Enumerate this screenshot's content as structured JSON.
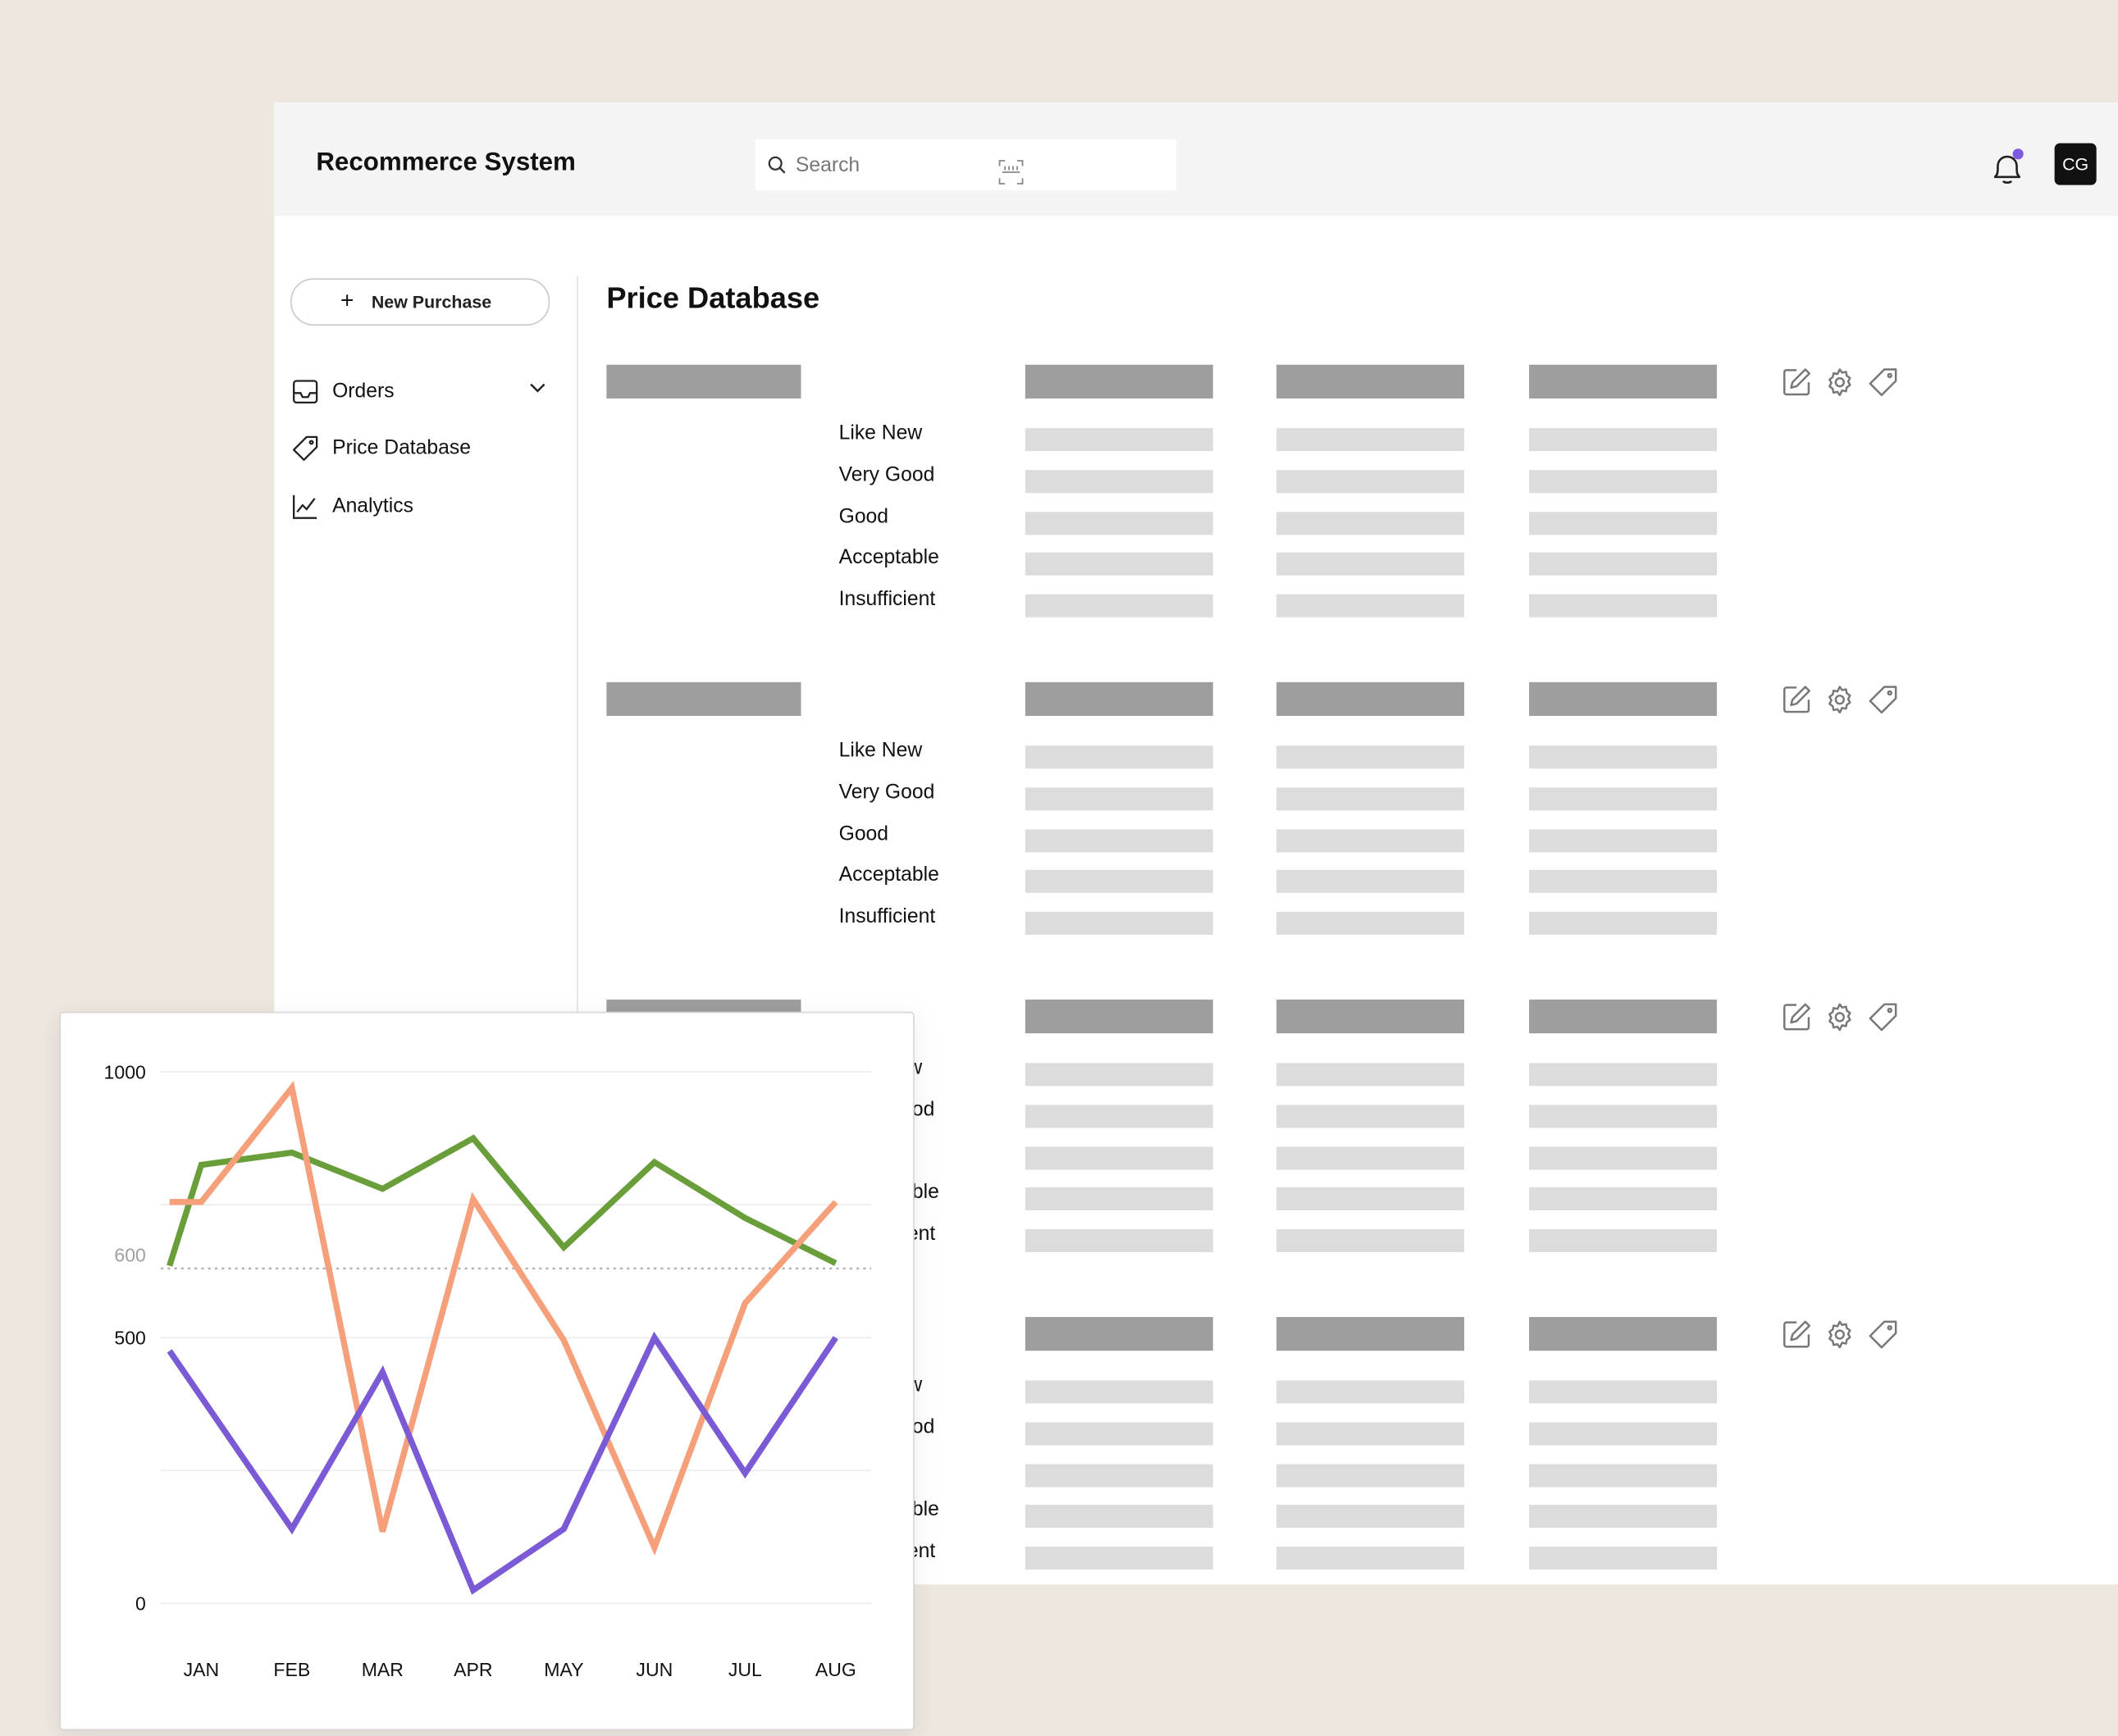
{
  "app": {
    "title": "Recommerce System"
  },
  "search": {
    "placeholder": "Search"
  },
  "user": {
    "initials": "CG"
  },
  "sidebar": {
    "new_button": "New Purchase",
    "items": [
      {
        "label": "Orders",
        "icon": "inbox-icon",
        "has_dropdown": true
      },
      {
        "label": "Price Database",
        "icon": "tag-icon"
      },
      {
        "label": "Analytics",
        "icon": "chart-icon"
      }
    ]
  },
  "main": {
    "title": "Price Database",
    "condition_labels": [
      "Like New",
      "Very Good",
      "Good",
      "Acceptable",
      "Insufficient"
    ],
    "row_actions": [
      "edit-icon",
      "gear-icon",
      "tag-icon"
    ]
  },
  "colors": {
    "accent_dot": "#7b5ce0",
    "series_green": "#6a9e3a",
    "series_orange": "#f5a07a",
    "series_purple": "#7b5ad6"
  },
  "chart_data": {
    "type": "line",
    "categories": [
      "JAN",
      "FEB",
      "MAR",
      "APR",
      "MAY",
      "JUN",
      "JUL",
      "AUG"
    ],
    "ytick_labels": [
      "1000",
      "600",
      "500",
      "0"
    ],
    "yticks": [
      1000,
      600,
      500,
      0
    ],
    "reference_line": 630,
    "ylim": [
      0,
      1000
    ],
    "series": [
      {
        "color": "#6a9e3a",
        "points": [
          [
            -0.35,
            635
          ],
          [
            0,
            825
          ],
          [
            1,
            848
          ],
          [
            2,
            780
          ],
          [
            3,
            875
          ],
          [
            4,
            670
          ],
          [
            5,
            830
          ],
          [
            6,
            725
          ],
          [
            7,
            640
          ]
        ]
      },
      {
        "color": "#f5a07a",
        "points": [
          [
            -0.35,
            755
          ],
          [
            0,
            755
          ],
          [
            1,
            970
          ],
          [
            2,
            135
          ],
          [
            3,
            760
          ],
          [
            4,
            495
          ],
          [
            5,
            105
          ],
          [
            6,
            565
          ],
          [
            7,
            755
          ]
        ]
      },
      {
        "color": "#7b5ad6",
        "points": [
          [
            -0.35,
            475
          ],
          [
            1,
            140
          ],
          [
            2,
            435
          ],
          [
            3,
            25
          ],
          [
            4,
            140
          ],
          [
            5,
            500
          ],
          [
            6,
            245
          ],
          [
            7,
            500
          ]
        ]
      }
    ]
  }
}
